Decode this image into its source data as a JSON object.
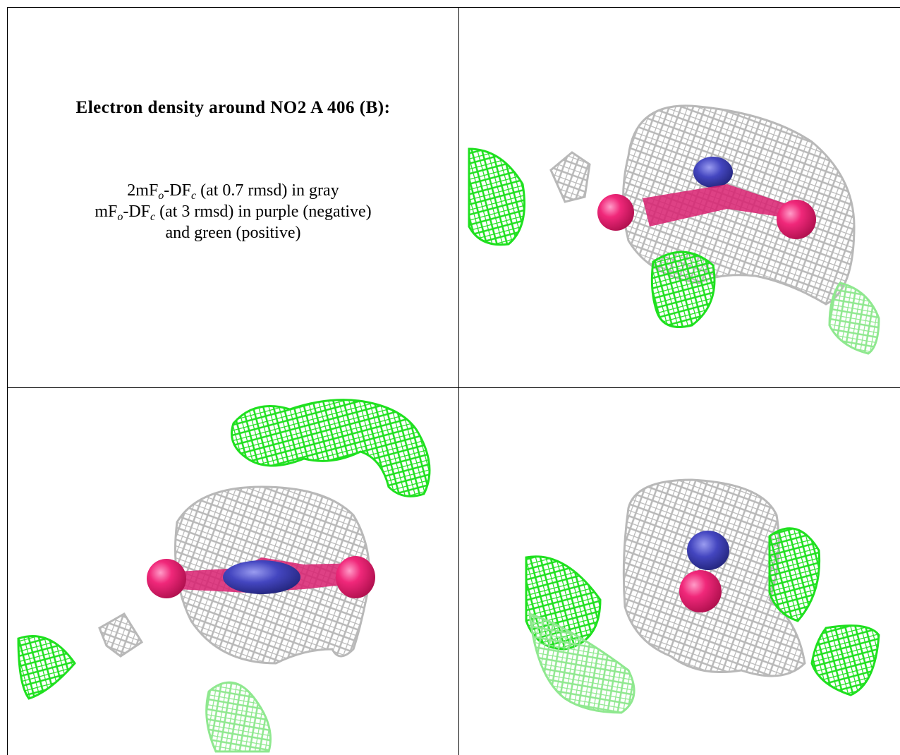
{
  "caption": {
    "title": "Electron density around NO2 A 406 (B):",
    "lines": [
      [
        "2mF",
        "o",
        "-DF",
        "c",
        " (at 0.7 rmsd) in gray"
      ],
      [
        "mF",
        "o",
        "-DF",
        "c",
        " (at 3 rmsd) in purple (negative)"
      ],
      [
        "and green (positive)"
      ]
    ]
  }
}
